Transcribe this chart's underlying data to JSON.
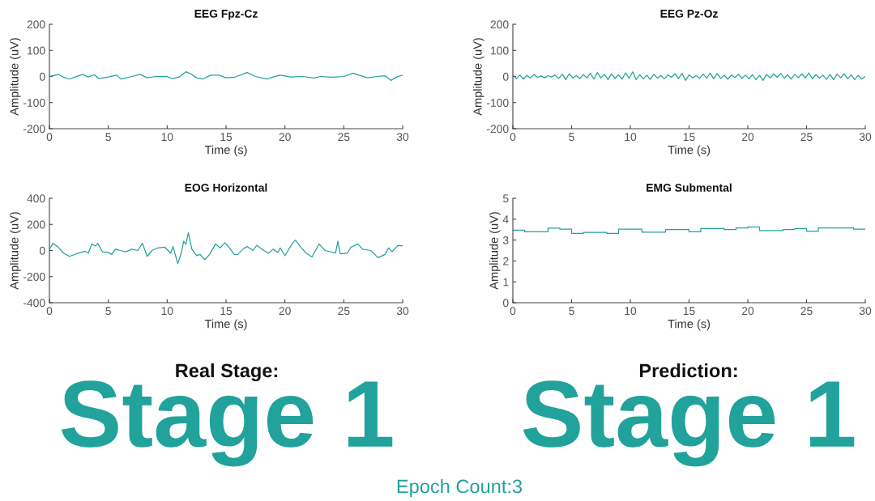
{
  "chart_data": [
    {
      "type": "line",
      "title": "EEG Fpz-Cz",
      "xlabel": "Time (s)",
      "ylabel": "Amplitude (uV)",
      "xlim": [
        0,
        30
      ],
      "ylim": [
        -200,
        200
      ],
      "xticks": [
        0,
        5,
        10,
        15,
        20,
        25,
        30
      ],
      "yticks": [
        -200,
        -100,
        0,
        100,
        200
      ],
      "grid": false,
      "series": [
        {
          "color": "#21a29b",
          "x": [
            0,
            0.5,
            0.8,
            1.2,
            1.7,
            2.2,
            2.8,
            3.3,
            3.8,
            4.2,
            5,
            5.7,
            6.1,
            7,
            7.7,
            8.3,
            9,
            10,
            10.4,
            11,
            11.6,
            12,
            12.5,
            13,
            13.7,
            14.4,
            15,
            15.7,
            16.8,
            17.5,
            18.5,
            19,
            19.6,
            20.5,
            21.5,
            22.5,
            23,
            24,
            25,
            25.8,
            26.3,
            27,
            27.8,
            28.5,
            29,
            29.5,
            30
          ],
          "values": [
            0,
            5,
            8,
            -3,
            -10,
            -2,
            8,
            -2,
            7,
            -8,
            -2,
            5,
            -10,
            0,
            8,
            -5,
            0,
            0,
            -8,
            -2,
            18,
            10,
            -5,
            -10,
            5,
            5,
            -5,
            -3,
            15,
            0,
            -10,
            -2,
            5,
            -2,
            0,
            -6,
            0,
            -3,
            0,
            13,
            5,
            -5,
            0,
            3,
            -15,
            -2,
            5
          ]
        }
      ]
    },
    {
      "type": "line",
      "title": "EEG Pz-Oz",
      "xlabel": "Time (s)",
      "ylabel": "Amplitude (uV)",
      "xlim": [
        0,
        30
      ],
      "ylim": [
        -200,
        200
      ],
      "xticks": [
        0,
        5,
        10,
        15,
        20,
        25,
        30
      ],
      "yticks": [
        -200,
        -100,
        0,
        100,
        200
      ],
      "grid": false,
      "series": [
        {
          "color": "#21a29b",
          "x": [
            0,
            0.3,
            0.6,
            0.9,
            1.2,
            1.5,
            1.8,
            2.1,
            2.4,
            2.7,
            3,
            3.3,
            3.6,
            3.9,
            4.2,
            4.5,
            4.8,
            5.1,
            5.4,
            5.7,
            6,
            6.3,
            6.6,
            6.9,
            7.2,
            7.5,
            7.8,
            8.1,
            8.4,
            8.7,
            9,
            9.3,
            9.6,
            9.9,
            10.2,
            10.5,
            10.8,
            11.1,
            11.4,
            11.7,
            12,
            12.3,
            12.6,
            12.9,
            13.2,
            13.5,
            13.8,
            14.1,
            14.4,
            14.7,
            15,
            15.3,
            15.6,
            15.9,
            16.2,
            16.5,
            16.8,
            17.1,
            17.4,
            17.7,
            18,
            18.3,
            18.6,
            18.9,
            19.2,
            19.5,
            19.8,
            20.1,
            20.4,
            20.7,
            21,
            21.3,
            21.6,
            21.9,
            22.2,
            22.5,
            22.8,
            23.1,
            23.4,
            23.7,
            24,
            24.3,
            24.6,
            24.9,
            25.2,
            25.5,
            25.8,
            26.1,
            26.4,
            26.7,
            27,
            27.3,
            27.6,
            27.9,
            28.2,
            28.5,
            28.8,
            29.1,
            29.4,
            29.7,
            30
          ],
          "values": [
            5,
            -8,
            6,
            -10,
            4,
            -6,
            8,
            -4,
            2,
            -5,
            3,
            -2,
            6,
            -8,
            9,
            -12,
            10,
            -6,
            4,
            -8,
            7,
            -5,
            12,
            -10,
            15,
            -6,
            8,
            -12,
            10,
            -7,
            6,
            -10,
            14,
            -8,
            18,
            -12,
            7,
            -9,
            5,
            -11,
            8,
            -6,
            4,
            -9,
            6,
            -3,
            10,
            -8,
            12,
            -15,
            6,
            -5,
            3,
            -7,
            9,
            -6,
            13,
            -9,
            11,
            -8,
            5,
            -10,
            6,
            -4,
            8,
            -7,
            5,
            -9,
            7,
            -12,
            4,
            -15,
            8,
            -6,
            10,
            -3,
            12,
            -7,
            6,
            -10,
            8,
            -5,
            10,
            -6,
            14,
            -9,
            7,
            -6,
            5,
            -11,
            8,
            -12,
            9,
            -5,
            10,
            -8,
            6,
            -12,
            4,
            -10,
            0
          ]
        }
      ]
    },
    {
      "type": "line",
      "title": "EOG Horizontal",
      "xlabel": "Time (s)",
      "ylabel": "Amplitude (uV)",
      "xlim": [
        0,
        30
      ],
      "ylim": [
        -400,
        400
      ],
      "xticks": [
        0,
        5,
        10,
        15,
        20,
        25,
        30
      ],
      "yticks": [
        -400,
        -200,
        0,
        200,
        400
      ],
      "grid": false,
      "series": [
        {
          "color": "#21a29b",
          "x": [
            0,
            0.3,
            0.7,
            1.2,
            1.7,
            2.3,
            3,
            3.3,
            3.6,
            3.9,
            4.1,
            4.5,
            5,
            5.3,
            5.6,
            6,
            6.5,
            7,
            7.5,
            7.9,
            8.3,
            8.7,
            9.2,
            9.8,
            10.3,
            10.5,
            10.9,
            11.2,
            11.4,
            11.6,
            11.8,
            12.1,
            12.5,
            12.8,
            13.2,
            13.6,
            14.1,
            14.5,
            14.9,
            15.3,
            15.7,
            16,
            16.5,
            16.8,
            17.3,
            17.6,
            18.2,
            18.6,
            19,
            19.4,
            19.6,
            20,
            20.6,
            20.9,
            21.3,
            21.8,
            22.3,
            22.9,
            23.4,
            24.3,
            24.5,
            24.7,
            25.3,
            25.6,
            26.2,
            26.6,
            27.3,
            27.9,
            28.5,
            28.8,
            29.1,
            29.6,
            30
          ],
          "values": [
            10,
            55,
            30,
            -20,
            -45,
            -25,
            -5,
            -20,
            50,
            35,
            55,
            -10,
            -15,
            -30,
            10,
            0,
            -10,
            10,
            0,
            55,
            -45,
            0,
            20,
            25,
            -20,
            30,
            -100,
            -20,
            70,
            50,
            135,
            10,
            -40,
            -30,
            -70,
            -30,
            50,
            20,
            60,
            20,
            -30,
            -30,
            15,
            30,
            0,
            40,
            0,
            -20,
            10,
            -15,
            20,
            -40,
            50,
            80,
            30,
            -20,
            -50,
            50,
            0,
            -20,
            70,
            -25,
            -20,
            25,
            50,
            10,
            0,
            -55,
            -30,
            20,
            -10,
            40,
            35
          ]
        }
      ]
    },
    {
      "type": "step",
      "title": "EMG Submental",
      "xlabel": "Time (s)",
      "ylabel": "Amplitude (uV)",
      "xlim": [
        0,
        30
      ],
      "ylim": [
        0,
        5
      ],
      "xticks": [
        0,
        5,
        10,
        15,
        20,
        25,
        30
      ],
      "yticks": [
        0,
        1,
        2,
        3,
        4,
        5
      ],
      "grid": false,
      "series": [
        {
          "color": "#21a29b",
          "x": [
            0,
            1,
            3,
            4,
            5,
            6,
            8,
            9,
            11,
            13,
            15,
            16,
            18,
            19,
            20,
            21,
            23,
            24,
            25,
            26,
            29,
            30
          ],
          "values": [
            3.47,
            3.4,
            3.57,
            3.52,
            3.32,
            3.37,
            3.32,
            3.52,
            3.38,
            3.5,
            3.4,
            3.55,
            3.5,
            3.58,
            3.63,
            3.45,
            3.5,
            3.55,
            3.43,
            3.58,
            3.52,
            3.52
          ]
        }
      ]
    },
    {
      "type": "other",
      "annotations": [
        "Real Stage:",
        "Stage 1",
        "Prediction:",
        "Stage 1",
        "Epoch Count:3"
      ],
      "colors": [
        "#111111",
        "#21a29b",
        "#111111",
        "#21a29b",
        "#21a29b"
      ]
    }
  ]
}
